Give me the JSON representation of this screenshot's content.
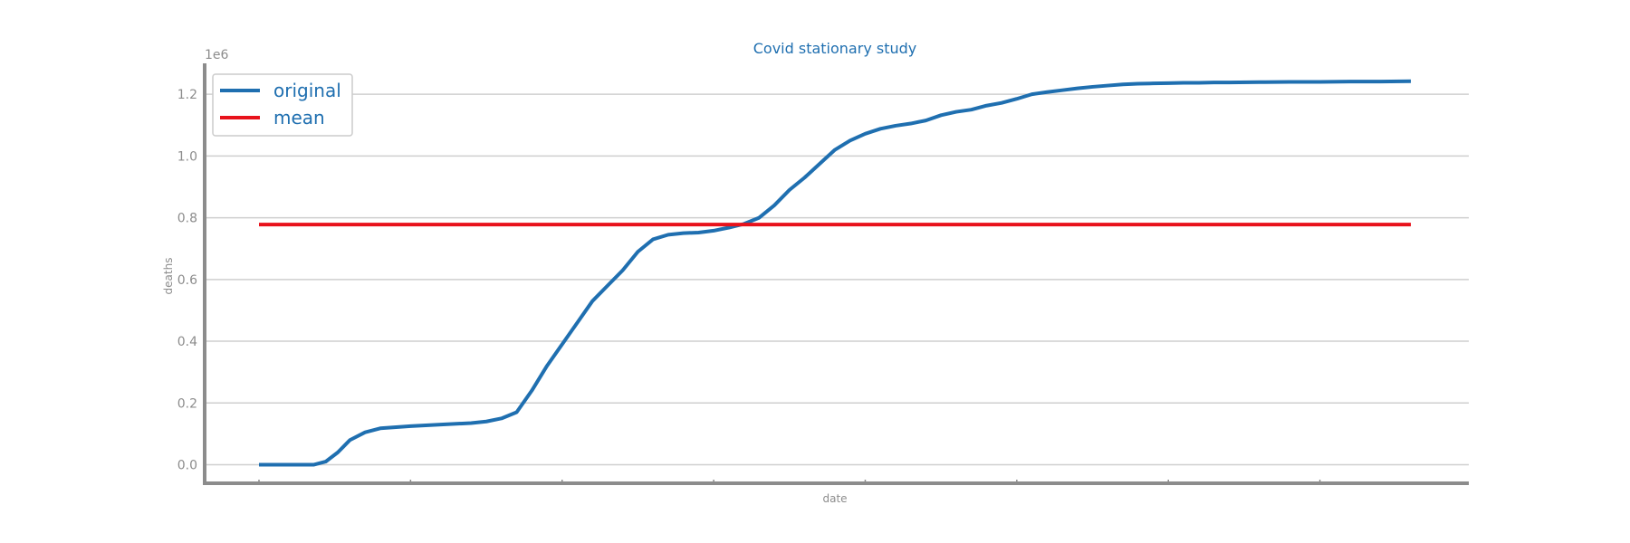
{
  "chart_data": {
    "type": "line",
    "title": "Covid stationary study",
    "xlabel": "date",
    "ylabel": "deaths",
    "y_scale_label": "1e6",
    "ylim": [
      -0.06,
      1.3
    ],
    "y_ticks": [
      0.0,
      0.2,
      0.4,
      0.6,
      0.8,
      1.0,
      1.2
    ],
    "y_tick_labels": [
      "0.0",
      "0.2",
      "0.4",
      "0.6",
      "0.8",
      "1.0",
      "1.2"
    ],
    "x_tick_count": 8,
    "x_range": [
      0,
      380
    ],
    "grid": "horizontal",
    "legend_position": "top-left",
    "series": [
      {
        "name": "original",
        "color": "#1f6fb0",
        "x": [
          0,
          10,
          18,
          22,
          26,
          30,
          35,
          40,
          50,
          60,
          70,
          75,
          80,
          85,
          90,
          95,
          100,
          105,
          110,
          115,
          120,
          125,
          130,
          135,
          140,
          145,
          150,
          155,
          160,
          165,
          170,
          175,
          180,
          185,
          190,
          195,
          200,
          205,
          210,
          215,
          220,
          225,
          230,
          235,
          240,
          245,
          250,
          255,
          260,
          265,
          270,
          275,
          280,
          285,
          290,
          295,
          300,
          305,
          310,
          315,
          320,
          330,
          340,
          350,
          360,
          370,
          380
        ],
        "y": [
          0.0,
          0.0,
          0.0,
          0.01,
          0.04,
          0.08,
          0.105,
          0.118,
          0.125,
          0.13,
          0.135,
          0.14,
          0.15,
          0.17,
          0.24,
          0.32,
          0.39,
          0.46,
          0.53,
          0.58,
          0.63,
          0.69,
          0.73,
          0.745,
          0.75,
          0.752,
          0.758,
          0.768,
          0.78,
          0.8,
          0.84,
          0.89,
          0.93,
          0.975,
          1.02,
          1.05,
          1.072,
          1.088,
          1.098,
          1.105,
          1.115,
          1.132,
          1.143,
          1.15,
          1.163,
          1.172,
          1.185,
          1.2,
          1.207,
          1.213,
          1.219,
          1.224,
          1.228,
          1.232,
          1.234,
          1.235,
          1.236,
          1.237,
          1.237,
          1.238,
          1.238,
          1.239,
          1.24,
          1.24,
          1.241,
          1.241,
          1.242
        ]
      },
      {
        "name": "mean",
        "color": "#e8121b",
        "x": [
          0,
          380
        ],
        "y": [
          0.778,
          0.778
        ]
      }
    ]
  }
}
